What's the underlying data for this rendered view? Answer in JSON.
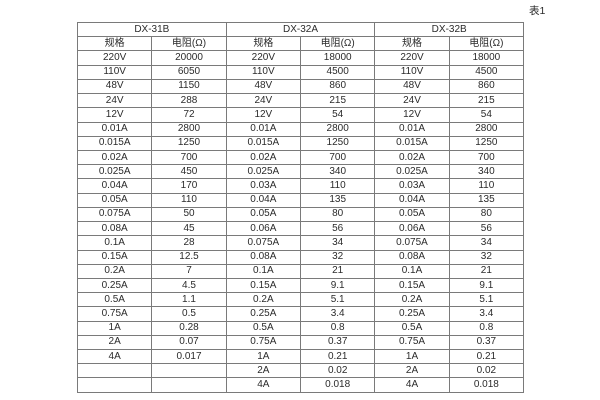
{
  "page": {
    "caption": "表1"
  },
  "table": {
    "groups": [
      {
        "label": "DX-31B"
      },
      {
        "label": "DX-32A"
      },
      {
        "label": "DX-32B"
      }
    ],
    "subheaders": {
      "spec": "规格",
      "resistance": "电阻(Ω)"
    },
    "rows": [
      [
        "220V",
        "20000",
        "220V",
        "18000",
        "220V",
        "18000"
      ],
      [
        "110V",
        "6050",
        "110V",
        "4500",
        "110V",
        "4500"
      ],
      [
        "48V",
        "1150",
        "48V",
        "860",
        "48V",
        "860"
      ],
      [
        "24V",
        "288",
        "24V",
        "215",
        "24V",
        "215"
      ],
      [
        "12V",
        "72",
        "12V",
        "54",
        "12V",
        "54"
      ],
      [
        "0.01A",
        "2800",
        "0.01A",
        "2800",
        "0.01A",
        "2800"
      ],
      [
        "0.015A",
        "1250",
        "0.015A",
        "1250",
        "0.015A",
        "1250"
      ],
      [
        "0.02A",
        "700",
        "0.02A",
        "700",
        "0.02A",
        "700"
      ],
      [
        "0.025A",
        "450",
        "0.025A",
        "340",
        "0.025A",
        "340"
      ],
      [
        "0.04A",
        "170",
        "0.03A",
        "110",
        "0.03A",
        "110"
      ],
      [
        "0.05A",
        "110",
        "0.04A",
        "135",
        "0.04A",
        "135"
      ],
      [
        "0.075A",
        "50",
        "0.05A",
        "80",
        "0.05A",
        "80"
      ],
      [
        "0.08A",
        "45",
        "0.06A",
        "56",
        "0.06A",
        "56"
      ],
      [
        "0.1A",
        "28",
        "0.075A",
        "34",
        "0.075A",
        "34"
      ],
      [
        "0.15A",
        "12.5",
        "0.08A",
        "32",
        "0.08A",
        "32"
      ],
      [
        "0.2A",
        "7",
        "0.1A",
        "21",
        "0.1A",
        "21"
      ],
      [
        "0.25A",
        "4.5",
        "0.15A",
        "9.1",
        "0.15A",
        "9.1"
      ],
      [
        "0.5A",
        "1.1",
        "0.2A",
        "5.1",
        "0.2A",
        "5.1"
      ],
      [
        "0.75A",
        "0.5",
        "0.25A",
        "3.4",
        "0.25A",
        "3.4"
      ],
      [
        "1A",
        "0.28",
        "0.5A",
        "0.8",
        "0.5A",
        "0.8"
      ],
      [
        "2A",
        "0.07",
        "0.75A",
        "0.37",
        "0.75A",
        "0.37"
      ],
      [
        "4A",
        "0.017",
        "1A",
        "0.21",
        "1A",
        "0.21"
      ],
      [
        "",
        "",
        "2A",
        "0.02",
        "2A",
        "0.02"
      ],
      [
        "",
        "",
        "4A",
        "0.018",
        "4A",
        "0.018"
      ]
    ]
  }
}
